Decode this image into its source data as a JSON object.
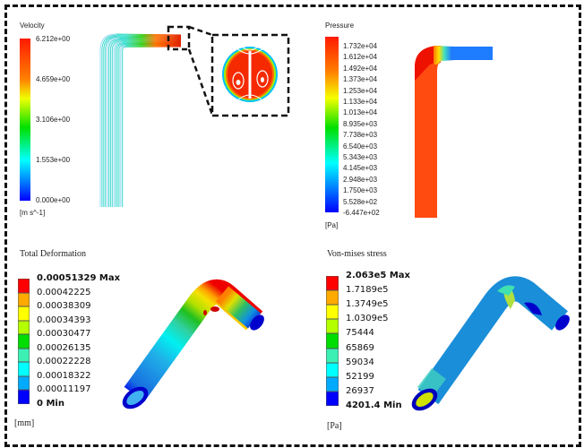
{
  "velocity": {
    "title": "Velocity",
    "labels": [
      "6.212e+00",
      "4.659e+00",
      "3.106e+00",
      "1.553e+00",
      "0.000e+00"
    ],
    "unit": "[m s^-1]",
    "range": [
      0.0,
      6.212
    ]
  },
  "pressure": {
    "title": "Pressure",
    "labels": [
      "1.732e+04",
      "1.612e+04",
      "1.492e+04",
      "1.373e+04",
      "1.253e+04",
      "1.133e+04",
      "1.013e+04",
      "8.935e+03",
      "7.738e+03",
      "6.540e+03",
      "5.343e+03",
      "4.145e+03",
      "2.948e+03",
      "1.750e+03",
      "5.528e+02",
      "-6.447e+02"
    ],
    "unit": "[Pa]",
    "range": [
      -644.7,
      17320
    ]
  },
  "deformation": {
    "title": "Total Deformation",
    "labels": [
      "0.00051329 Max",
      "0.00042225",
      "0.00038309",
      "0.00034393",
      "0.00030477",
      "0.00026135",
      "0.00022228",
      "0.00018322",
      "0.00011197",
      "0 Min"
    ],
    "unit": "[mm]"
  },
  "stress": {
    "title": "Von-mises stress",
    "labels": [
      "2.063e5 Max",
      "1.7189e5",
      "1.3749e5",
      "1.0309e5",
      "75444",
      "65869",
      "59034",
      "52199",
      "26937",
      "4201.4 Min"
    ],
    "unit": "[Pa]"
  },
  "colors": {
    "bands": [
      "#ff0000",
      "#ffaa00",
      "#ffff00",
      "#b4ff00",
      "#00dd00",
      "#3cf0b4",
      "#00ffff",
      "#00aaff",
      "#0000ff"
    ],
    "rainbow": [
      "#ff0000",
      "#ff8000",
      "#ffff00",
      "#00ff00",
      "#00ffff",
      "#0080ff",
      "#0000ff"
    ],
    "frame": "#111111"
  }
}
